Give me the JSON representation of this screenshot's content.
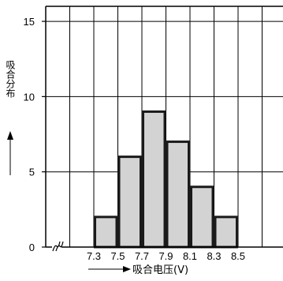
{
  "chart_data": {
    "type": "bar",
    "title": "",
    "xlabel": "吸合电压(V)",
    "ylabel": "吸合分布",
    "categories": [
      "7.3",
      "7.5",
      "7.7",
      "7.9",
      "8.1",
      "8.3",
      "8.5"
    ],
    "x_tick_labels": [
      "7.3",
      "7.5",
      "7.7",
      "7.9",
      "8.1",
      "8.3",
      "8.5"
    ],
    "values": [
      2,
      6,
      9,
      7,
      4,
      2,
      0
    ],
    "ylim": [
      0,
      16
    ],
    "yticks": [
      0,
      5,
      10,
      15
    ],
    "grid": true,
    "legend": "none",
    "axis_break": true,
    "colors": {
      "bar_fill": "#d3d3d3",
      "bar_stroke": "#1a1a1a",
      "grid": "#000000"
    }
  }
}
